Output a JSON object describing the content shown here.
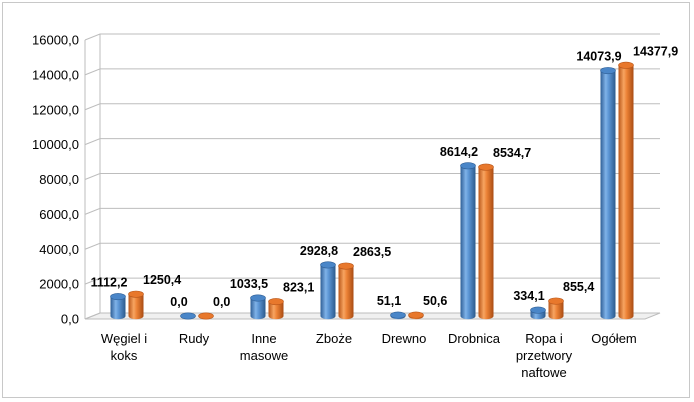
{
  "chart_data": {
    "type": "bar",
    "title": "",
    "xlabel": "",
    "ylabel": "",
    "ylim": [
      0,
      16000
    ],
    "yticks": [
      "0,0",
      "2000,0",
      "4000,0",
      "6000,0",
      "8000,0",
      "10000,0",
      "12000,0",
      "14000,0",
      "16000,0"
    ],
    "grid": true,
    "legend": "none",
    "categories": [
      [
        "Węgiel i",
        "koks"
      ],
      [
        "Rudy"
      ],
      [
        "Inne",
        "masowe"
      ],
      [
        "Zboże"
      ],
      [
        "Drewno"
      ],
      [
        "Drobnica"
      ],
      [
        "Ropa i",
        "przetwory",
        "naftowe"
      ],
      [
        "Ogółem"
      ]
    ],
    "series": [
      {
        "color": "#4a86c8",
        "values": [
          1112.2,
          0.0,
          1033.5,
          2928.8,
          51.1,
          8614.2,
          334.1,
          14073.9
        ],
        "labels": [
          "1112,2",
          "0,0",
          "1033,5",
          "2928,8",
          "51,1",
          "8614,2",
          "334,1",
          "14073,9"
        ]
      },
      {
        "color": "#e8782c",
        "values": [
          1250.4,
          0.0,
          823.1,
          2863.5,
          50.6,
          8534.7,
          855.4,
          14377.9
        ],
        "labels": [
          "1250,4",
          "0,0",
          "823,1",
          "2863,5",
          "50,6",
          "8534,7",
          "855,4",
          "14377,9"
        ]
      }
    ]
  }
}
